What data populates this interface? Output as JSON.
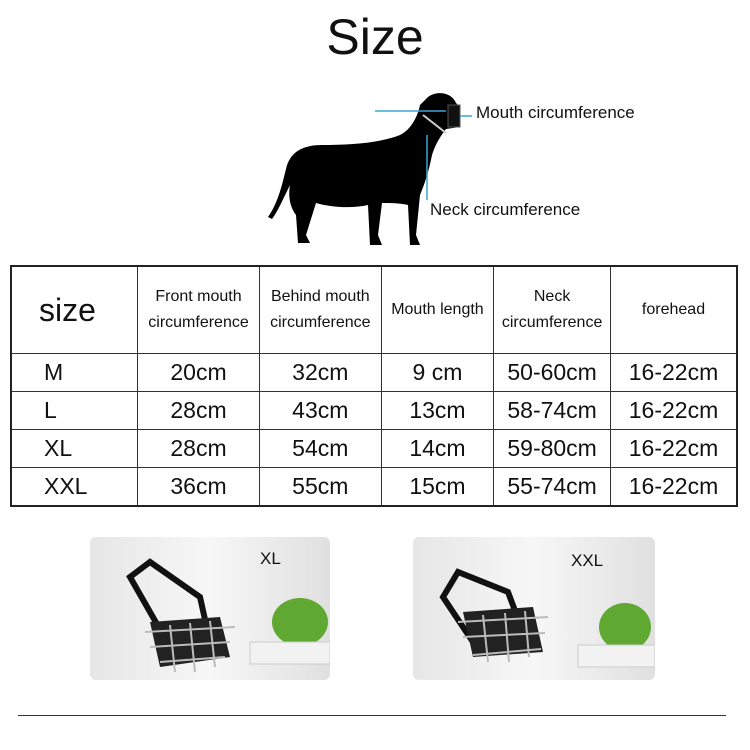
{
  "title": "Size",
  "diagram": {
    "mouth_label": "Mouth circumference",
    "neck_label": "Neck circumference",
    "line_color": "#3aa6d8"
  },
  "table": {
    "headers": [
      "size",
      "Front mouth circumference",
      "Behind mouth circumference",
      "Mouth length",
      "Neck circumference",
      "forehead"
    ],
    "rows": [
      [
        "M",
        "20cm",
        "32cm",
        "9 cm",
        "50-60cm",
        "16-22cm"
      ],
      [
        "L",
        "28cm",
        "43cm",
        "13cm",
        "58-74cm",
        "16-22cm"
      ],
      [
        "XL",
        "28cm",
        "54cm",
        "14cm",
        "59-80cm",
        "16-22cm"
      ],
      [
        "XXL",
        "36cm",
        "55cm",
        "15cm",
        "55-74cm",
        "16-22cm"
      ]
    ]
  },
  "photos": [
    {
      "label": "XL"
    },
    {
      "label": "XXL"
    }
  ]
}
